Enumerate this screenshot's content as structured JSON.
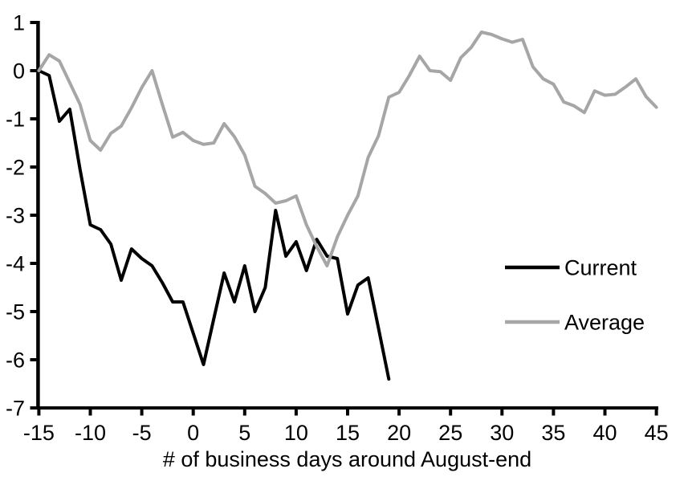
{
  "chart_data": {
    "type": "line",
    "title": "",
    "xlabel": "# of business days around August-end",
    "ylabel": "",
    "xlim": [
      -15,
      45
    ],
    "ylim": [
      -7,
      1
    ],
    "x_ticks": [
      -15,
      -10,
      -5,
      0,
      5,
      10,
      15,
      20,
      25,
      30,
      35,
      40,
      45
    ],
    "y_ticks": [
      1,
      0,
      -1,
      -2,
      -3,
      -4,
      -5,
      -6,
      -7
    ],
    "grid": false,
    "legend_position": "right-middle",
    "axis_color": "#000000",
    "series": [
      {
        "name": "Current",
        "color": "#000000",
        "stroke_width": 4,
        "x_start": -15,
        "x_step": 1,
        "values": [
          0.0,
          -0.1,
          -1.05,
          -0.8,
          -2.05,
          -3.2,
          -3.3,
          -3.6,
          -4.35,
          -3.7,
          -3.9,
          -4.05,
          -4.4,
          -4.8,
          -4.8,
          -5.45,
          -6.1,
          -5.15,
          -4.2,
          -4.8,
          -4.05,
          -5.0,
          -4.5,
          -2.9,
          -3.85,
          -3.55,
          -4.15,
          -3.5,
          -3.85,
          -3.9,
          -5.05,
          -4.45,
          -4.3,
          -5.35,
          -6.4
        ]
      },
      {
        "name": "Average",
        "color": "#a6a6a6",
        "stroke_width": 4,
        "x_start": -15,
        "x_step": 1,
        "values": [
          0.0,
          0.33,
          0.2,
          -0.25,
          -0.7,
          -1.45,
          -1.65,
          -1.3,
          -1.15,
          -0.77,
          -0.35,
          0.0,
          -0.7,
          -1.38,
          -1.28,
          -1.45,
          -1.53,
          -1.5,
          -1.1,
          -1.37,
          -1.75,
          -2.4,
          -2.55,
          -2.75,
          -2.7,
          -2.6,
          -3.2,
          -3.65,
          -4.05,
          -3.45,
          -3.0,
          -2.6,
          -1.8,
          -1.35,
          -0.55,
          -0.45,
          -0.1,
          0.3,
          0.0,
          -0.02,
          -0.2,
          0.27,
          0.48,
          0.8,
          0.75,
          0.66,
          0.59,
          0.65,
          0.08,
          -0.17,
          -0.28,
          -0.65,
          -0.73,
          -0.87,
          -0.42,
          -0.51,
          -0.49,
          -0.34,
          -0.17,
          -0.54,
          -0.76
        ]
      }
    ],
    "legend": {
      "items": [
        {
          "label": "Current",
          "color": "#000000"
        },
        {
          "label": "Average",
          "color": "#a6a6a6"
        }
      ]
    }
  }
}
